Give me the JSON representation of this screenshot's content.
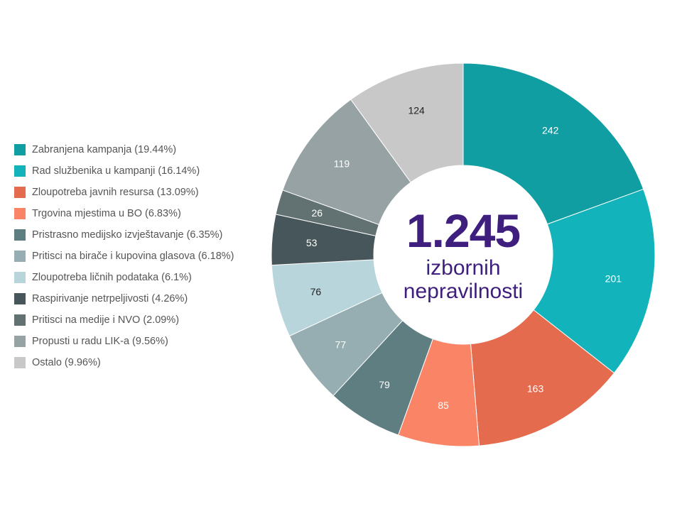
{
  "center": {
    "total": "1.245",
    "line1": "izbornih",
    "line2": "nepravilnosti"
  },
  "chart_data": {
    "type": "pie",
    "donut": true,
    "start_angle_deg": 0,
    "direction": "clockwise",
    "legend_position": "left",
    "categories": [
      "Zabranjena kampanja",
      "Rad službenika u kampanji",
      "Zloupotreba javnih resursa",
      "Trgovina mjestima u BO",
      "Pristrasno medijsko izvještavanje",
      "Pritisci na birače i kupovina glasova",
      "Zloupotreba ličnih podataka",
      "Raspirivanje netrpeljivosti",
      "Pritisci na medije i NVO",
      "Propusti u radu LIK-a",
      "Ostalo"
    ],
    "legend_labels": [
      "Zabranjena kampanja (19.44%)",
      "Rad službenika u kampanji (16.14%)",
      "Zloupotreba javnih resursa (13.09%)",
      "Trgovina mjestima u BO (6.83%)",
      "Pristrasno medijsko izvještavanje (6.35%)",
      "Pritisci na birače i kupovina glasova (6.18%)",
      "Zloupotreba ličnih podataka (6.1%)",
      "Raspirivanje netrpeljivosti (4.26%)",
      "Pritisci na medije i NVO (2.09%)",
      "Propusti u radu LIK-a (9.56%)",
      "Ostalo (9.96%)"
    ],
    "percentages": [
      19.44,
      16.14,
      13.09,
      6.83,
      6.35,
      6.18,
      6.1,
      4.26,
      2.09,
      9.56,
      9.96
    ],
    "values": [
      242,
      201,
      163,
      85,
      79,
      77,
      76,
      53,
      26,
      119,
      124
    ],
    "value_labels": [
      "242",
      "201",
      "163",
      "85",
      "79",
      "77",
      "76",
      "53",
      "26",
      "119",
      "124"
    ],
    "colors": [
      "#119ea2",
      "#12b3ba",
      "#e56b4e",
      "#fa8466",
      "#5f7e82",
      "#96aeb1",
      "#b7d5da",
      "#47565a",
      "#627273",
      "#96a2a3",
      "#c8c8c8"
    ],
    "label_colors": [
      "#ffffff",
      "#ffffff",
      "#ffffff",
      "#ffffff",
      "#ffffff",
      "#ffffff",
      "#222222",
      "#ffffff",
      "#ffffff",
      "#ffffff",
      "#222222"
    ]
  }
}
